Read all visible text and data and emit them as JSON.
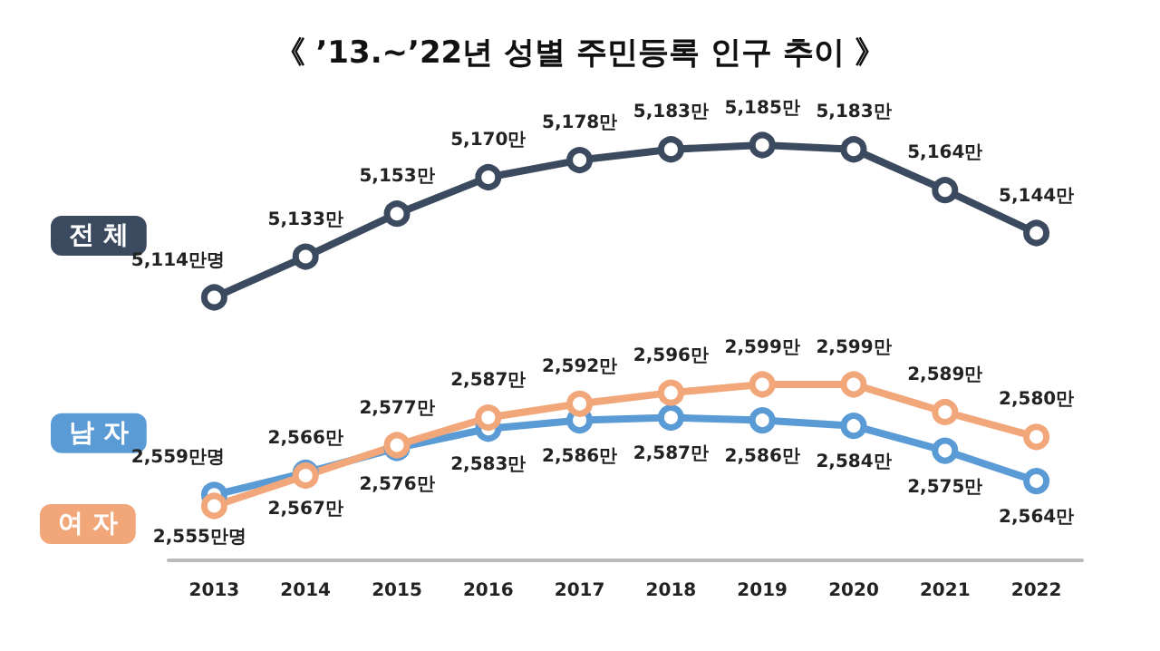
{
  "chart_data": [
    {
      "type": "line",
      "title": "《 ’13.~’22년 성별 주민등록 인구 추이 》",
      "categories": [
        "2013",
        "2014",
        "2015",
        "2016",
        "2017",
        "2018",
        "2019",
        "2020",
        "2021",
        "2022"
      ],
      "marker": "circle",
      "line_style": "solid",
      "grid": false,
      "legend": false,
      "tick_labels": false,
      "series": [
        {
          "name": "전 체",
          "color": "#3b4a5e",
          "values": [
            5114,
            5133,
            5153,
            5170,
            5178,
            5183,
            5185,
            5183,
            5164,
            5144
          ],
          "value_labels": [
            "5,114만명",
            "5,133만",
            "5,153만",
            "5,170만",
            "5,178만",
            "5,183만",
            "5,185만",
            "5,183만",
            "5,164만",
            "5,144만"
          ]
        }
      ]
    },
    {
      "type": "line",
      "categories": [
        "2013",
        "2014",
        "2015",
        "2016",
        "2017",
        "2018",
        "2019",
        "2020",
        "2021",
        "2022"
      ],
      "marker": "circle",
      "line_style": "solid",
      "grid": false,
      "legend": false,
      "tick_labels": "x",
      "series": [
        {
          "name": "남 자",
          "color": "#5b9bd5",
          "values": [
            2559,
            2567,
            2576,
            2583,
            2586,
            2587,
            2586,
            2584,
            2575,
            2564
          ],
          "value_labels": [
            "2,559만명",
            "2,567만",
            "2,576만",
            "2,583만",
            "2,586만",
            "2,587만",
            "2,586만",
            "2,584만",
            "2,575만",
            "2,564만"
          ]
        },
        {
          "name": "여 자",
          "color": "#f2a77a",
          "values": [
            2555,
            2566,
            2577,
            2587,
            2592,
            2596,
            2599,
            2599,
            2589,
            2580
          ],
          "value_labels": [
            "2,555만명",
            "2,566만",
            "2,577만",
            "2,587만",
            "2,592만",
            "2,596만",
            "2,599만",
            "2,599만",
            "2,589만",
            "2,580만"
          ]
        }
      ]
    }
  ]
}
